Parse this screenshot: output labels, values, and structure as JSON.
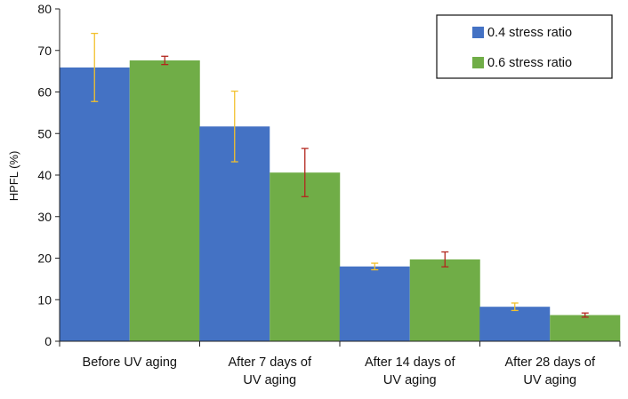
{
  "chart_data": {
    "type": "bar",
    "title": "",
    "xlabel": "",
    "ylabel": "HPFL (%)",
    "ylim": [
      0,
      80
    ],
    "yticks": [
      0,
      10,
      20,
      30,
      40,
      50,
      60,
      70,
      80
    ],
    "grid": false,
    "legend_position": "top-right",
    "categories": [
      [
        "Before UV aging"
      ],
      [
        "After 7 days of",
        "UV aging"
      ],
      [
        "After 14 days of",
        "UV aging"
      ],
      [
        "After 28 days of",
        "UV aging"
      ]
    ],
    "series": [
      {
        "name": "0.4 stress ratio",
        "color": "#4472C4",
        "error_color": "#F2C12E",
        "values": [
          65.9,
          51.7,
          18.0,
          8.3
        ],
        "error": [
          8.2,
          8.5,
          0.8,
          0.9
        ]
      },
      {
        "name": "0.6 stress ratio",
        "color": "#70AD47",
        "error_color": "#B3261E",
        "values": [
          67.6,
          40.6,
          19.7,
          6.3
        ],
        "error": [
          1.0,
          5.8,
          1.8,
          0.5
        ]
      }
    ]
  }
}
